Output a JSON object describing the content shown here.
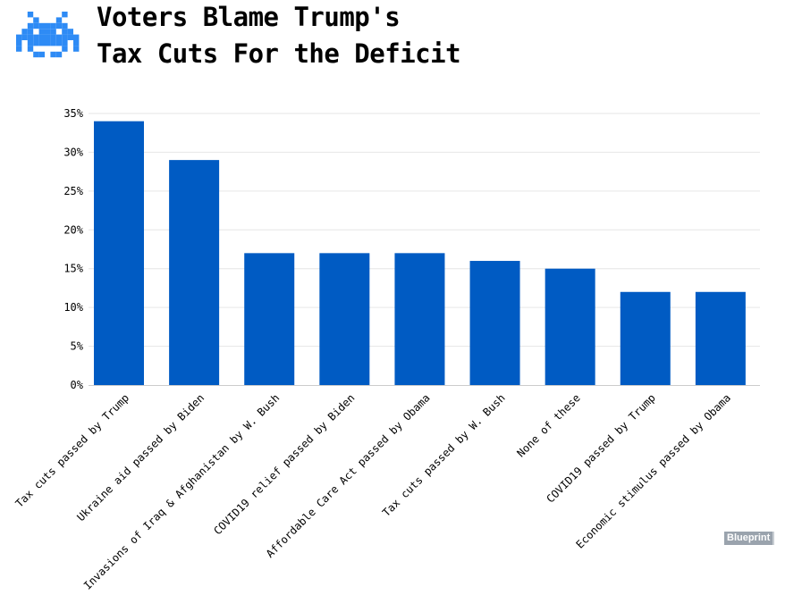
{
  "header": {
    "title_line1": "Voters Blame Trump's",
    "title_line2": "Tax Cuts For the Deficit"
  },
  "brand": {
    "badge": "Blueprint",
    "logo_icon": "space-invader-icon"
  },
  "colors": {
    "bar": "#005bc3",
    "logo": "#2e8bf5",
    "grid": "#e6e6e6",
    "axis": "#cccccc",
    "text": "#000000"
  },
  "chart_data": {
    "type": "bar",
    "title": "Voters Blame Trump's Tax Cuts For the Deficit",
    "xlabel": "",
    "ylabel": "",
    "categories": [
      "Tax cuts passed by Trump",
      "Ukraine aid passed by Biden",
      "Invasions of Iraq & Afghanistan by W. Bush",
      "COVID19 relief passed by Biden",
      "Affordable Care Act passed by Obama",
      "Tax cuts passed by W. Bush",
      "None of these",
      "COVID19 passed by Trump",
      "Economic stimulus passed by Obama"
    ],
    "values": [
      34,
      29,
      17,
      17,
      17,
      16,
      15,
      12,
      12
    ],
    "unit": "%",
    "ylim": [
      0,
      35
    ],
    "yticks": [
      0,
      5,
      10,
      15,
      20,
      25,
      30,
      35
    ],
    "ytick_labels": [
      "0%",
      "5%",
      "10%",
      "15%",
      "20%",
      "25%",
      "30%",
      "35%"
    ],
    "grid": true
  }
}
